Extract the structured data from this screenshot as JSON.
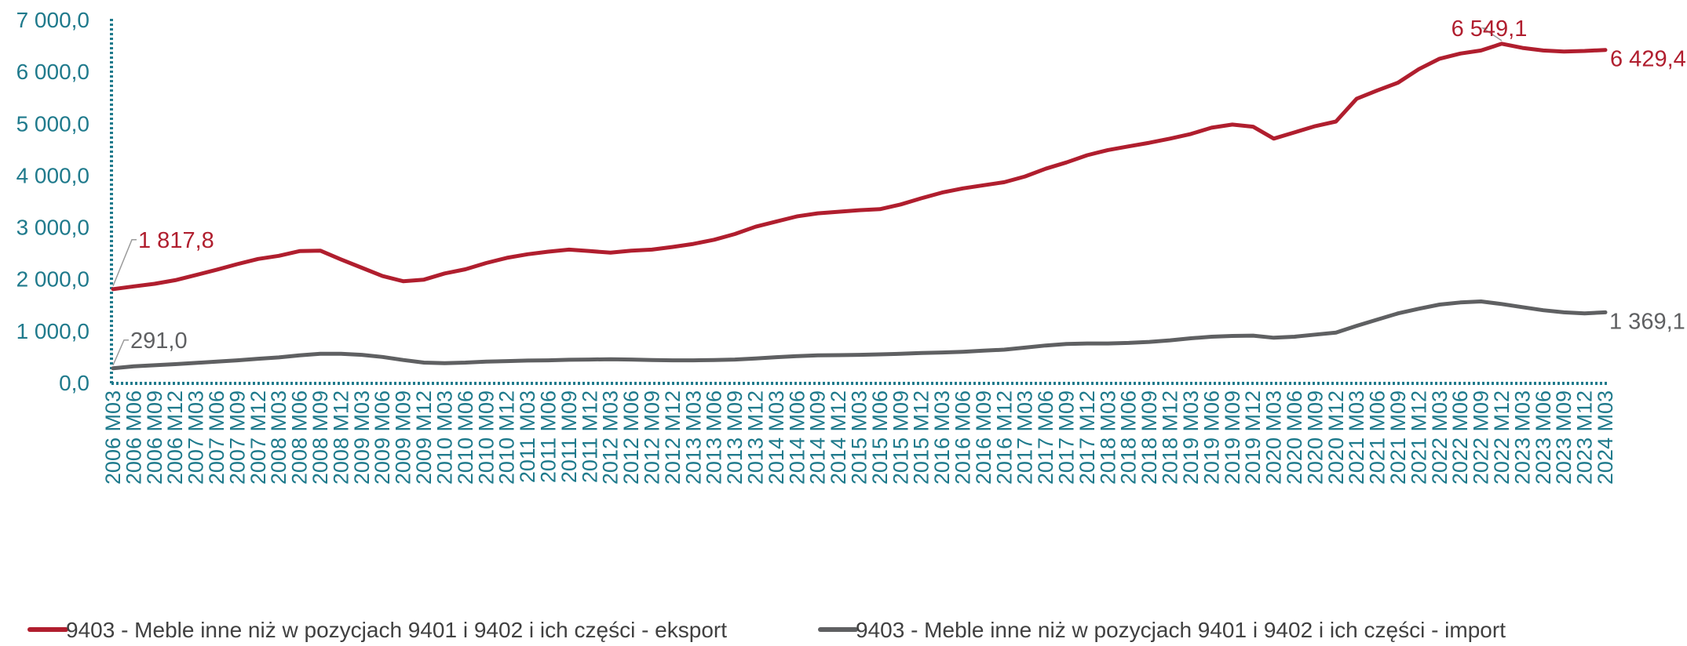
{
  "colors": {
    "axis": "#1F7A8C",
    "export": "#B01E2E",
    "import": "#5F6062",
    "callout_line": "#9A9A9A"
  },
  "chart_data": {
    "type": "line",
    "y_ticks": [
      "0,0",
      "1 000,0",
      "2 000,0",
      "3 000,0",
      "4 000,0",
      "5 000,0",
      "6 000,0",
      "7 000,0"
    ],
    "ylim": [
      0,
      7000
    ],
    "x_tick_labels": [
      "2006 M03",
      "2006 M06",
      "2006 M09",
      "2006 M12",
      "2007 M03",
      "2007 M06",
      "2007 M09",
      "2007 M12",
      "2008 M03",
      "2008 M06",
      "2008 M09",
      "2008 M12",
      "2009 M03",
      "2009 M06",
      "2009 M09",
      "2009 M12",
      "2010 M03",
      "2010 M06",
      "2010 M09",
      "2010 M12",
      "2011 M03",
      "2011 M06",
      "2011 M09",
      "2011 M12",
      "2012 M03",
      "2012 M06",
      "2012 M09",
      "2012 M12",
      "2013 M03",
      "2013 M06",
      "2013 M09",
      "2013 M12",
      "2014 M03",
      "2014 M06",
      "2014 M09",
      "2014 M12",
      "2015 M03",
      "2015 M06",
      "2015 M09",
      "2015 M12",
      "2016 M03",
      "2016 M06",
      "2016 M09",
      "2016 M12",
      "2017 M03",
      "2017 M06",
      "2017 M09",
      "2017 M12",
      "2018 M03",
      "2018 M06",
      "2018 M09",
      "2018 M12",
      "2019 M03",
      "2019 M06",
      "2019 M09",
      "2019 M12",
      "2020 M03",
      "2020 M06",
      "2020 M09",
      "2020 M12",
      "2021 M03",
      "2021 M06",
      "2021 M09",
      "2021 M12",
      "2022 M03",
      "2022 M06",
      "2022 M09",
      "2022 M12",
      "2023 M03",
      "2023 M06",
      "2023 M09",
      "2023 M12",
      "2024 M03"
    ],
    "grid": false,
    "legend_position": "bottom",
    "series": [
      {
        "name": "9403 - Meble inne niż w pozycjach 9401 i 9402 i ich części  - eksport",
        "key": "export",
        "values": [
          1817.8,
          1870,
          1920,
          1990,
          2090,
          2190,
          2300,
          2400,
          2460,
          2550,
          2560,
          2390,
          2230,
          2070,
          1970,
          2000,
          2120,
          2200,
          2320,
          2420,
          2490,
          2540,
          2580,
          2550,
          2520,
          2560,
          2580,
          2630,
          2690,
          2770,
          2880,
          3020,
          3120,
          3220,
          3280,
          3310,
          3340,
          3360,
          3450,
          3570,
          3680,
          3760,
          3820,
          3880,
          3990,
          4140,
          4260,
          4400,
          4500,
          4570,
          4640,
          4720,
          4810,
          4930,
          4990,
          4950,
          4720,
          4840,
          4960,
          5050,
          5490,
          5650,
          5800,
          6060,
          6260,
          6360,
          6420,
          6549.1,
          6470,
          6420,
          6400,
          6410,
          6429.4
        ],
        "labels": [
          {
            "index": 0,
            "text": "1 817,8"
          },
          {
            "index": 67,
            "text": "6 549,1"
          },
          {
            "index": 72,
            "text": "6 429,4"
          }
        ]
      },
      {
        "name": "9403 - Meble inne niż w pozycjach 9401 i 9402 i ich części  - import",
        "key": "import",
        "values": [
          291.0,
          330,
          350,
          370,
          395,
          420,
          445,
          475,
          500,
          540,
          570,
          570,
          550,
          510,
          450,
          400,
          390,
          400,
          420,
          430,
          440,
          445,
          455,
          460,
          465,
          460,
          450,
          445,
          445,
          450,
          460,
          480,
          505,
          525,
          540,
          545,
          550,
          560,
          570,
          585,
          595,
          610,
          630,
          650,
          690,
          730,
          760,
          770,
          770,
          780,
          800,
          830,
          870,
          900,
          915,
          920,
          880,
          900,
          940,
          980,
          1110,
          1230,
          1350,
          1440,
          1520,
          1560,
          1580,
          1530,
          1470,
          1410,
          1370,
          1350,
          1369.1
        ],
        "labels": [
          {
            "index": 0,
            "text": "291,0"
          },
          {
            "index": 72,
            "text": "1 369,1"
          }
        ]
      }
    ]
  }
}
